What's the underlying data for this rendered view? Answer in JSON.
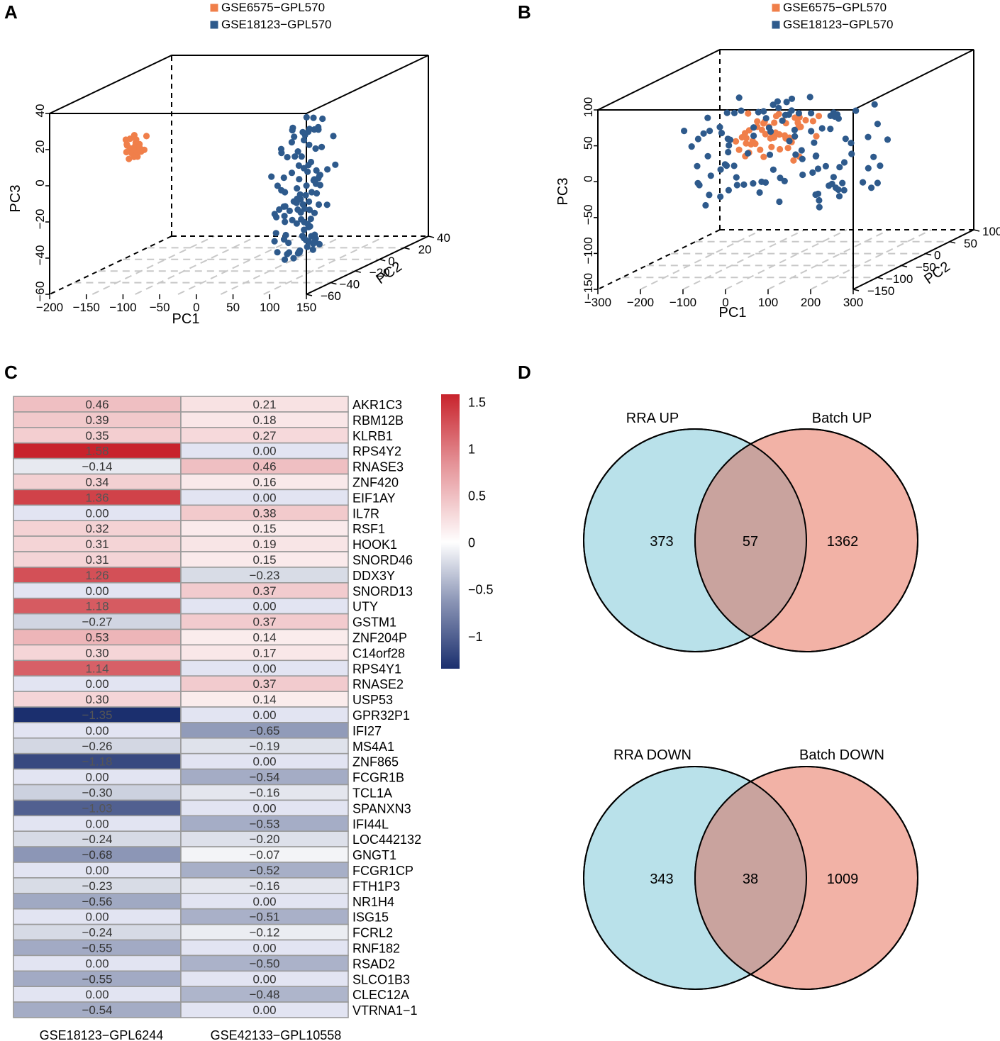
{
  "panels": {
    "a": "A",
    "b": "B",
    "c": "C",
    "d": "D"
  },
  "colors": {
    "orange": "#F07F4A",
    "blue": "#2E5A8C",
    "venn_left": "#B9E1EA",
    "venn_right": "#F2B2A6",
    "venn_overlap": "#C9A39E",
    "heat_high": "#C8232C",
    "heat_mid": "#FFFFFF",
    "heat_low": "#1B2F6E"
  },
  "chart_data": [
    {
      "id": "A",
      "type": "scatter",
      "projection": "3d",
      "legend": [
        "GSE6575−GPL570",
        "GSE18123−GPL570"
      ],
      "axes": {
        "x": {
          "label": "PC1",
          "range": [
            -200,
            150
          ],
          "ticks": [
            "−200",
            "−150",
            "−100",
            "−50",
            "0",
            "50",
            "100",
            "150"
          ]
        },
        "y": {
          "label": "PC2",
          "range": [
            -60,
            40
          ],
          "ticks": [
            "−60",
            "−40",
            "−20",
            "0",
            "20",
            "40"
          ]
        },
        "z": {
          "label": "PC3",
          "range": [
            -60,
            40
          ],
          "ticks": [
            "−60",
            "−40",
            "−20",
            "0",
            "20",
            "40"
          ]
        }
      },
      "series": [
        {
          "name": "GSE6575−GPL570",
          "color": "#F07F4A",
          "n_points": 30,
          "pc1_range": [
            -110,
            -90
          ],
          "pc3_range": [
            12,
            24
          ]
        },
        {
          "name": "GSE18123−GPL570",
          "color": "#2E5A8C",
          "n_points": 110,
          "pc1_range": [
            90,
            150
          ],
          "pc3_range": [
            -45,
            32
          ]
        }
      ]
    },
    {
      "id": "B",
      "type": "scatter",
      "projection": "3d",
      "legend": [
        "GSE6575−GPL570",
        "GSE18123−GPL570"
      ],
      "axes": {
        "x": {
          "label": "PC1",
          "range": [
            -300,
            300
          ],
          "ticks": [
            "−300",
            "−200",
            "−100",
            "0",
            "100",
            "200",
            "300"
          ]
        },
        "y": {
          "label": "PC2",
          "range": [
            -150,
            100
          ],
          "ticks": [
            "−150",
            "−100",
            "−50",
            "0",
            "50",
            "100"
          ]
        },
        "z": {
          "label": "PC3",
          "range": [
            -150,
            100
          ],
          "ticks": [
            "−150",
            "−100",
            "−50",
            "0",
            "50",
            "100"
          ]
        }
      },
      "series": [
        {
          "name": "GSE6575−GPL570",
          "color": "#F07F4A",
          "n_points": 55,
          "pc1_range": [
            -20,
            130
          ],
          "pc3_range": [
            20,
            75
          ]
        },
        {
          "name": "GSE18123−GPL570",
          "color": "#2E5A8C",
          "n_points": 110,
          "pc1_range": [
            -120,
            260
          ],
          "pc3_range": [
            -45,
            95
          ]
        }
      ]
    },
    {
      "id": "C",
      "type": "heatmap",
      "columns": [
        "GSE18123−GPL6244",
        "GSE42133−GPL10558"
      ],
      "colorbar": {
        "range": [
          -1.35,
          1.58
        ],
        "ticks": [
          "1.5",
          "1",
          "0.5",
          "0",
          "−0.5",
          "−1"
        ],
        "tick_values": [
          1.5,
          1,
          0.5,
          0,
          -0.5,
          -1
        ]
      },
      "rows": [
        {
          "gene": "AKR1C3",
          "values": [
            0.46,
            0.21
          ],
          "labels": [
            "0.46",
            "0.21"
          ]
        },
        {
          "gene": "RBM12B",
          "values": [
            0.39,
            0.18
          ],
          "labels": [
            "0.39",
            "0.18"
          ]
        },
        {
          "gene": "KLRB1",
          "values": [
            0.35,
            0.27
          ],
          "labels": [
            "0.35",
            "0.27"
          ]
        },
        {
          "gene": "RPS4Y2",
          "values": [
            1.58,
            0.0
          ],
          "labels": [
            "1.58",
            "0.00"
          ]
        },
        {
          "gene": "RNASE3",
          "values": [
            -0.14,
            0.46
          ],
          "labels": [
            "−0.14",
            "0.46"
          ]
        },
        {
          "gene": "ZNF420",
          "values": [
            0.34,
            0.16
          ],
          "labels": [
            "0.34",
            "0.16"
          ]
        },
        {
          "gene": "EIF1AY",
          "values": [
            1.36,
            0.0
          ],
          "labels": [
            "1.36",
            "0.00"
          ]
        },
        {
          "gene": "IL7R",
          "values": [
            0.0,
            0.38
          ],
          "labels": [
            "0.00",
            "0.38"
          ]
        },
        {
          "gene": "RSF1",
          "values": [
            0.32,
            0.15
          ],
          "labels": [
            "0.32",
            "0.15"
          ]
        },
        {
          "gene": "HOOK1",
          "values": [
            0.31,
            0.19
          ],
          "labels": [
            "0.31",
            "0.19"
          ]
        },
        {
          "gene": "SNORD46",
          "values": [
            0.31,
            0.15
          ],
          "labels": [
            "0.31",
            "0.15"
          ]
        },
        {
          "gene": "DDX3Y",
          "values": [
            1.26,
            -0.23
          ],
          "labels": [
            "1.26",
            "−0.23"
          ]
        },
        {
          "gene": "SNORD13",
          "values": [
            0.0,
            0.37
          ],
          "labels": [
            "0.00",
            "0.37"
          ]
        },
        {
          "gene": "UTY",
          "values": [
            1.18,
            0.0
          ],
          "labels": [
            "1.18",
            "0.00"
          ]
        },
        {
          "gene": "GSTM1",
          "values": [
            -0.27,
            0.37
          ],
          "labels": [
            "−0.27",
            "0.37"
          ]
        },
        {
          "gene": "ZNF204P",
          "values": [
            0.53,
            0.14
          ],
          "labels": [
            "0.53",
            "0.14"
          ]
        },
        {
          "gene": "C14orf28",
          "values": [
            0.3,
            0.17
          ],
          "labels": [
            "0.30",
            "0.17"
          ]
        },
        {
          "gene": "RPS4Y1",
          "values": [
            1.14,
            0.0
          ],
          "labels": [
            "1.14",
            "0.00"
          ]
        },
        {
          "gene": "RNASE2",
          "values": [
            0.0,
            0.37
          ],
          "labels": [
            "0.00",
            "0.37"
          ]
        },
        {
          "gene": "USP53",
          "values": [
            0.3,
            0.14
          ],
          "labels": [
            "0.30",
            "0.14"
          ]
        },
        {
          "gene": "GPR32P1",
          "values": [
            -1.35,
            0.0
          ],
          "labels": [
            "−1.35",
            "0.00"
          ]
        },
        {
          "gene": "IFI27",
          "values": [
            0.0,
            -0.65
          ],
          "labels": [
            "0.00",
            "−0.65"
          ]
        },
        {
          "gene": "MS4A1",
          "values": [
            -0.26,
            -0.19
          ],
          "labels": [
            "−0.26",
            "−0.19"
          ]
        },
        {
          "gene": "ZNF865",
          "values": [
            -1.18,
            0.0
          ],
          "labels": [
            "−1.18",
            "0.00"
          ]
        },
        {
          "gene": "FCGR1B",
          "values": [
            0.0,
            -0.54
          ],
          "labels": [
            "0.00",
            "−0.54"
          ]
        },
        {
          "gene": "TCL1A",
          "values": [
            -0.3,
            -0.16
          ],
          "labels": [
            "−0.30",
            "−0.16"
          ]
        },
        {
          "gene": "SPANXN3",
          "values": [
            -1.03,
            0.0
          ],
          "labels": [
            "−1.03",
            "0.00"
          ]
        },
        {
          "gene": "IFI44L",
          "values": [
            0.0,
            -0.53
          ],
          "labels": [
            "0.00",
            "−0.53"
          ]
        },
        {
          "gene": "LOC442132",
          "values": [
            -0.24,
            -0.2
          ],
          "labels": [
            "−0.24",
            "−0.20"
          ]
        },
        {
          "gene": "GNGT1",
          "values": [
            -0.68,
            -0.07
          ],
          "labels": [
            "−0.68",
            "−0.07"
          ]
        },
        {
          "gene": "FCGR1CP",
          "values": [
            0.0,
            -0.52
          ],
          "labels": [
            "0.00",
            "−0.52"
          ]
        },
        {
          "gene": "FTH1P3",
          "values": [
            -0.23,
            -0.16
          ],
          "labels": [
            "−0.23",
            "−0.16"
          ]
        },
        {
          "gene": "NR1H4",
          "values": [
            -0.56,
            0.0
          ],
          "labels": [
            "−0.56",
            "0.00"
          ]
        },
        {
          "gene": "ISG15",
          "values": [
            0.0,
            -0.51
          ],
          "labels": [
            "0.00",
            "−0.51"
          ]
        },
        {
          "gene": "FCRL2",
          "values": [
            -0.24,
            -0.12
          ],
          "labels": [
            "−0.24",
            "−0.12"
          ]
        },
        {
          "gene": "RNF182",
          "values": [
            -0.55,
            0.0
          ],
          "labels": [
            "−0.55",
            "0.00"
          ]
        },
        {
          "gene": "RSAD2",
          "values": [
            0.0,
            -0.5
          ],
          "labels": [
            "0.00",
            "−0.50"
          ]
        },
        {
          "gene": "SLCO1B3",
          "values": [
            -0.55,
            0.0
          ],
          "labels": [
            "−0.55",
            "0.00"
          ]
        },
        {
          "gene": "CLEC12A",
          "values": [
            0.0,
            -0.48
          ],
          "labels": [
            "0.00",
            "−0.48"
          ]
        },
        {
          "gene": "VTRNA1−1",
          "values": [
            -0.54,
            0.0
          ],
          "labels": [
            "−0.54",
            "0.00"
          ]
        }
      ]
    },
    {
      "id": "D",
      "type": "venn",
      "diagrams": [
        {
          "left_label": "RRA UP",
          "right_label": "Batch UP",
          "left_only": "373",
          "overlap": "57",
          "right_only": "1362"
        },
        {
          "left_label": "RRA DOWN",
          "right_label": "Batch DOWN",
          "left_only": "343",
          "overlap": "38",
          "right_only": "1009"
        }
      ]
    }
  ]
}
